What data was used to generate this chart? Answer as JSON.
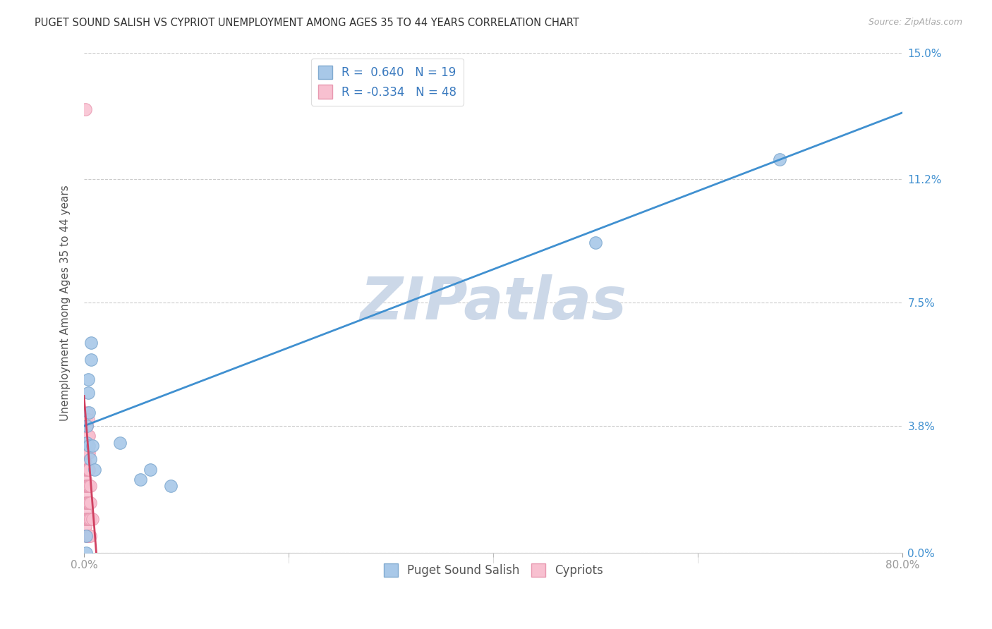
{
  "title": "PUGET SOUND SALISH VS CYPRIOT UNEMPLOYMENT AMONG AGES 35 TO 44 YEARS CORRELATION CHART",
  "source": "Source: ZipAtlas.com",
  "ylabel": "Unemployment Among Ages 35 to 44 years",
  "xlim": [
    0.0,
    0.8
  ],
  "ylim": [
    0.0,
    0.15
  ],
  "xticks": [
    0.0,
    0.2,
    0.4,
    0.6,
    0.8
  ],
  "yticks": [
    0.0,
    0.038,
    0.075,
    0.112,
    0.15
  ],
  "xticklabels": [
    "0.0%",
    "",
    "",
    "",
    "80.0%"
  ],
  "yticklabels": [
    "0.0%",
    "3.8%",
    "7.5%",
    "11.2%",
    "15.0%"
  ],
  "blue_R": 0.64,
  "blue_N": 19,
  "pink_R": -0.334,
  "pink_N": 48,
  "blue_color": "#a8c8e8",
  "blue_edge": "#80aad0",
  "pink_color": "#f8c0d0",
  "pink_edge": "#e898b0",
  "blue_line_color": "#4090d0",
  "pink_line_color": "#d04060",
  "legend_blue_color": "#a8c8e8",
  "legend_pink_color": "#f8c0d0",
  "watermark": "ZIPatlas",
  "watermark_color": "#ccd8e8",
  "blue_trend_x0": 0.0,
  "blue_trend_y0": 0.038,
  "blue_trend_x1": 0.8,
  "blue_trend_y1": 0.132,
  "pink_trend_x0": 0.0,
  "pink_trend_y0": 0.047,
  "pink_trend_x1": 0.012,
  "pink_trend_y1": 0.0,
  "blue_x": [
    0.002,
    0.002,
    0.003,
    0.003,
    0.004,
    0.004,
    0.005,
    0.005,
    0.006,
    0.007,
    0.007,
    0.008,
    0.01,
    0.035,
    0.055,
    0.065,
    0.085,
    0.5,
    0.68
  ],
  "blue_y": [
    0.005,
    0.0,
    0.033,
    0.038,
    0.048,
    0.052,
    0.042,
    0.032,
    0.028,
    0.058,
    0.063,
    0.032,
    0.025,
    0.033,
    0.022,
    0.025,
    0.02,
    0.093,
    0.118
  ],
  "pink_x": [
    0.001,
    0.001,
    0.001,
    0.001,
    0.001,
    0.001,
    0.001,
    0.001,
    0.001,
    0.001,
    0.002,
    0.002,
    0.002,
    0.002,
    0.002,
    0.002,
    0.002,
    0.002,
    0.003,
    0.003,
    0.003,
    0.003,
    0.003,
    0.003,
    0.003,
    0.003,
    0.003,
    0.004,
    0.004,
    0.004,
    0.004,
    0.004,
    0.004,
    0.004,
    0.004,
    0.005,
    0.005,
    0.005,
    0.005,
    0.005,
    0.005,
    0.005,
    0.006,
    0.006,
    0.006,
    0.006,
    0.008,
    0.001
  ],
  "pink_y": [
    0.008,
    0.01,
    0.012,
    0.015,
    0.018,
    0.02,
    0.022,
    0.025,
    0.027,
    0.03,
    0.005,
    0.01,
    0.015,
    0.02,
    0.025,
    0.03,
    0.035,
    0.04,
    0.005,
    0.01,
    0.015,
    0.02,
    0.025,
    0.03,
    0.035,
    0.038,
    0.042,
    0.005,
    0.01,
    0.015,
    0.02,
    0.025,
    0.03,
    0.035,
    0.04,
    0.005,
    0.01,
    0.015,
    0.02,
    0.025,
    0.03,
    0.035,
    0.005,
    0.01,
    0.015,
    0.02,
    0.01,
    0.133
  ]
}
